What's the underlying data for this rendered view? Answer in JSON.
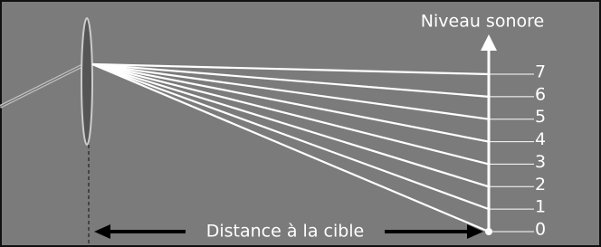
{
  "axis": {
    "title": "Niveau sonore",
    "levels": [
      "0",
      "1",
      "2",
      "3",
      "4",
      "5",
      "6",
      "7"
    ]
  },
  "distance_label": "Distance à la cible"
}
